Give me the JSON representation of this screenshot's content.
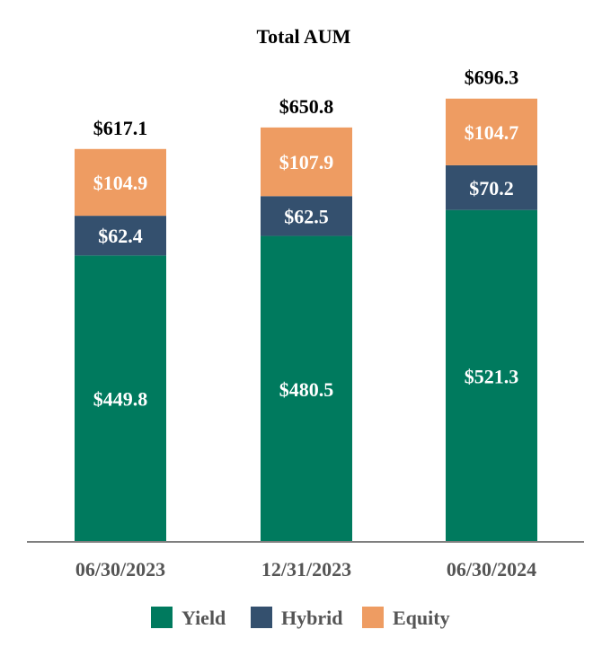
{
  "chart_data": {
    "type": "bar",
    "stacked": true,
    "title": "Total AUM",
    "categories": [
      "06/30/2023",
      "12/31/2023",
      "06/30/2024"
    ],
    "series": [
      {
        "name": "Yield",
        "color": "#007a5e",
        "values": [
          449.8,
          480.5,
          521.3
        ],
        "labels": [
          "$449.8",
          "$480.5",
          "$521.3"
        ]
      },
      {
        "name": "Hybrid",
        "color": "#34506e",
        "values": [
          62.4,
          62.5,
          70.2
        ],
        "labels": [
          "$62.4",
          "$62.5",
          "$70.2"
        ]
      },
      {
        "name": "Equity",
        "color": "#ee9c62",
        "values": [
          104.9,
          107.9,
          104.7
        ],
        "labels": [
          "$104.9",
          "$107.9",
          "$104.7"
        ]
      }
    ],
    "totals": [
      "$617.1",
      "$650.8",
      "$696.3"
    ],
    "total_values": [
      617.1,
      650.8,
      696.3
    ],
    "legend_position": "bottom",
    "grid": false,
    "axis_color": "#7f7f7f"
  }
}
